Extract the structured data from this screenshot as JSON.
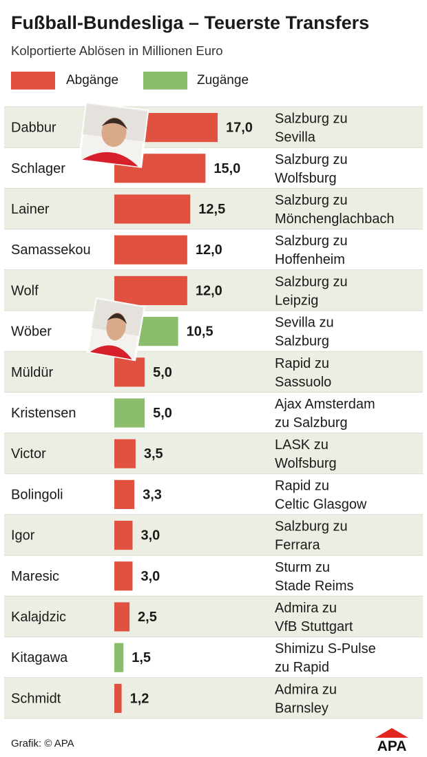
{
  "header": {
    "title": "Fußball-Bundesliga – Teuerste Transfers",
    "subtitle": "Kolportierte Ablösen in Millionen Euro"
  },
  "legend": [
    {
      "label": "Abgänge",
      "color": "#e05140"
    },
    {
      "label": "Zugänge",
      "color": "#8cbd6c"
    }
  ],
  "colors": {
    "abgang": "#e05140",
    "zugang": "#8cbd6c",
    "row_shaded": "#edeee3",
    "row_plain": "#ffffff",
    "divider": "#ffffff"
  },
  "chart_data": {
    "type": "bar",
    "orientation": "horizontal",
    "title": "Fußball-Bundesliga – Teuerste Transfers",
    "subtitle": "Kolportierte Ablösen in Millionen Euro",
    "categories": [
      "Dabbur",
      "Schlager",
      "Lainer",
      "Samassekou",
      "Wolf",
      "Wöber",
      "Müldür",
      "Kristensen",
      "Victor",
      "Bolingoli",
      "Igor",
      "Maresic",
      "Kalajdzic",
      "Kitagawa",
      "Schmidt"
    ],
    "values": [
      17.0,
      15.0,
      12.5,
      12.0,
      12.0,
      10.5,
      5.0,
      5.0,
      3.5,
      3.3,
      3.0,
      3.0,
      2.5,
      1.5,
      1.2
    ],
    "value_labels": [
      "17,0",
      "15,0",
      "12,5",
      "12,0",
      "12,0",
      "10,5",
      "5,0",
      "5,0",
      "3,5",
      "3,3",
      "3,0",
      "3,0",
      "2,5",
      "1,5",
      "1,2"
    ],
    "series_type": [
      "Abgänge",
      "Abgänge",
      "Abgänge",
      "Abgänge",
      "Abgänge",
      "Zugänge",
      "Abgänge",
      "Zugänge",
      "Abgänge",
      "Abgänge",
      "Abgänge",
      "Abgänge",
      "Abgänge",
      "Zugänge",
      "Abgänge"
    ],
    "transfer_line1": [
      "Salzburg zu",
      "Salzburg zu",
      "Salzburg zu",
      "Salzburg zu",
      "Salzburg zu",
      "Sevilla zu",
      "Rapid zu",
      "Ajax Amsterdam",
      "LASK zu",
      "Rapid zu",
      "Salzburg zu",
      "Sturm zu",
      "Admira zu",
      "Shimizu S-Pulse",
      "Admira zu"
    ],
    "transfer_line2": [
      "Sevilla",
      "Wolfsburg",
      "Mönchenglachbach",
      "Hoffenheim",
      "Leipzig",
      "Salzburg",
      "Sassuolo",
      "zu Salzburg",
      "Wolfsburg",
      "Celtic Glasgow",
      "Ferrara",
      "Stade Reims",
      "VfB Stuttgart",
      "zu Rapid",
      "Barnsley"
    ],
    "photos": [
      {
        "player": "Dabbur",
        "shirt": "#d8202c"
      },
      {
        "player": "Wöber",
        "shirt": "#d8202c"
      }
    ],
    "xlim": [
      0,
      17
    ],
    "grid": false,
    "legend_position": "top-left"
  },
  "footer": {
    "credit": "Grafik: © APA",
    "logo": "APA"
  }
}
